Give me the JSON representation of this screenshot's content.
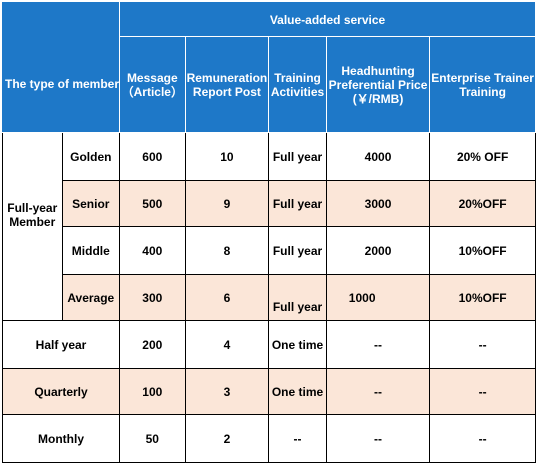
{
  "header": {
    "member_type": "The type of member",
    "value_added": "Value-added service",
    "columns": {
      "message": [
        "Message",
        "（Article）"
      ],
      "remuneration": [
        "Remuneration",
        "Report Post"
      ],
      "training": [
        "Training",
        "Activities"
      ],
      "headhunting": [
        "Headhunting",
        "Preferential Price",
        "(￥/RMB)"
      ],
      "enterprise": [
        "Enterprise Trainer",
        "Training"
      ]
    }
  },
  "full_year_group": [
    "Full-year",
    "Member"
  ],
  "rows": [
    {
      "tier": "Golden",
      "message": "600",
      "remuneration": "10",
      "training": "Full year",
      "headhunting": "4000",
      "enterprise": "20% OFF"
    },
    {
      "tier": "Senior",
      "message": "500",
      "remuneration": "9",
      "training": "Full year",
      "headhunting": "3000",
      "enterprise": "20%OFF"
    },
    {
      "tier": "Middle",
      "message": "400",
      "remuneration": "8",
      "training": "Full year",
      "headhunting": "2000",
      "enterprise": "10%OFF"
    },
    {
      "tier": "Average",
      "message": "300",
      "remuneration": "6",
      "training": "Full year",
      "headhunting": "1000",
      "enterprise": "10%OFF"
    },
    {
      "tier": "Half year",
      "message": "200",
      "remuneration": "4",
      "training": "One time",
      "headhunting": "--",
      "enterprise": "--"
    },
    {
      "tier": "Quarterly",
      "message": "100",
      "remuneration": "3",
      "training": "One time",
      "headhunting": "--",
      "enterprise": "--"
    },
    {
      "tier": "Monthly",
      "message": "50",
      "remuneration": "2",
      "training": "--",
      "headhunting": "--",
      "enterprise": "--"
    }
  ],
  "colors": {
    "header_bg": "#1e78c8",
    "alt_row_bg": "#fbe6d8"
  }
}
